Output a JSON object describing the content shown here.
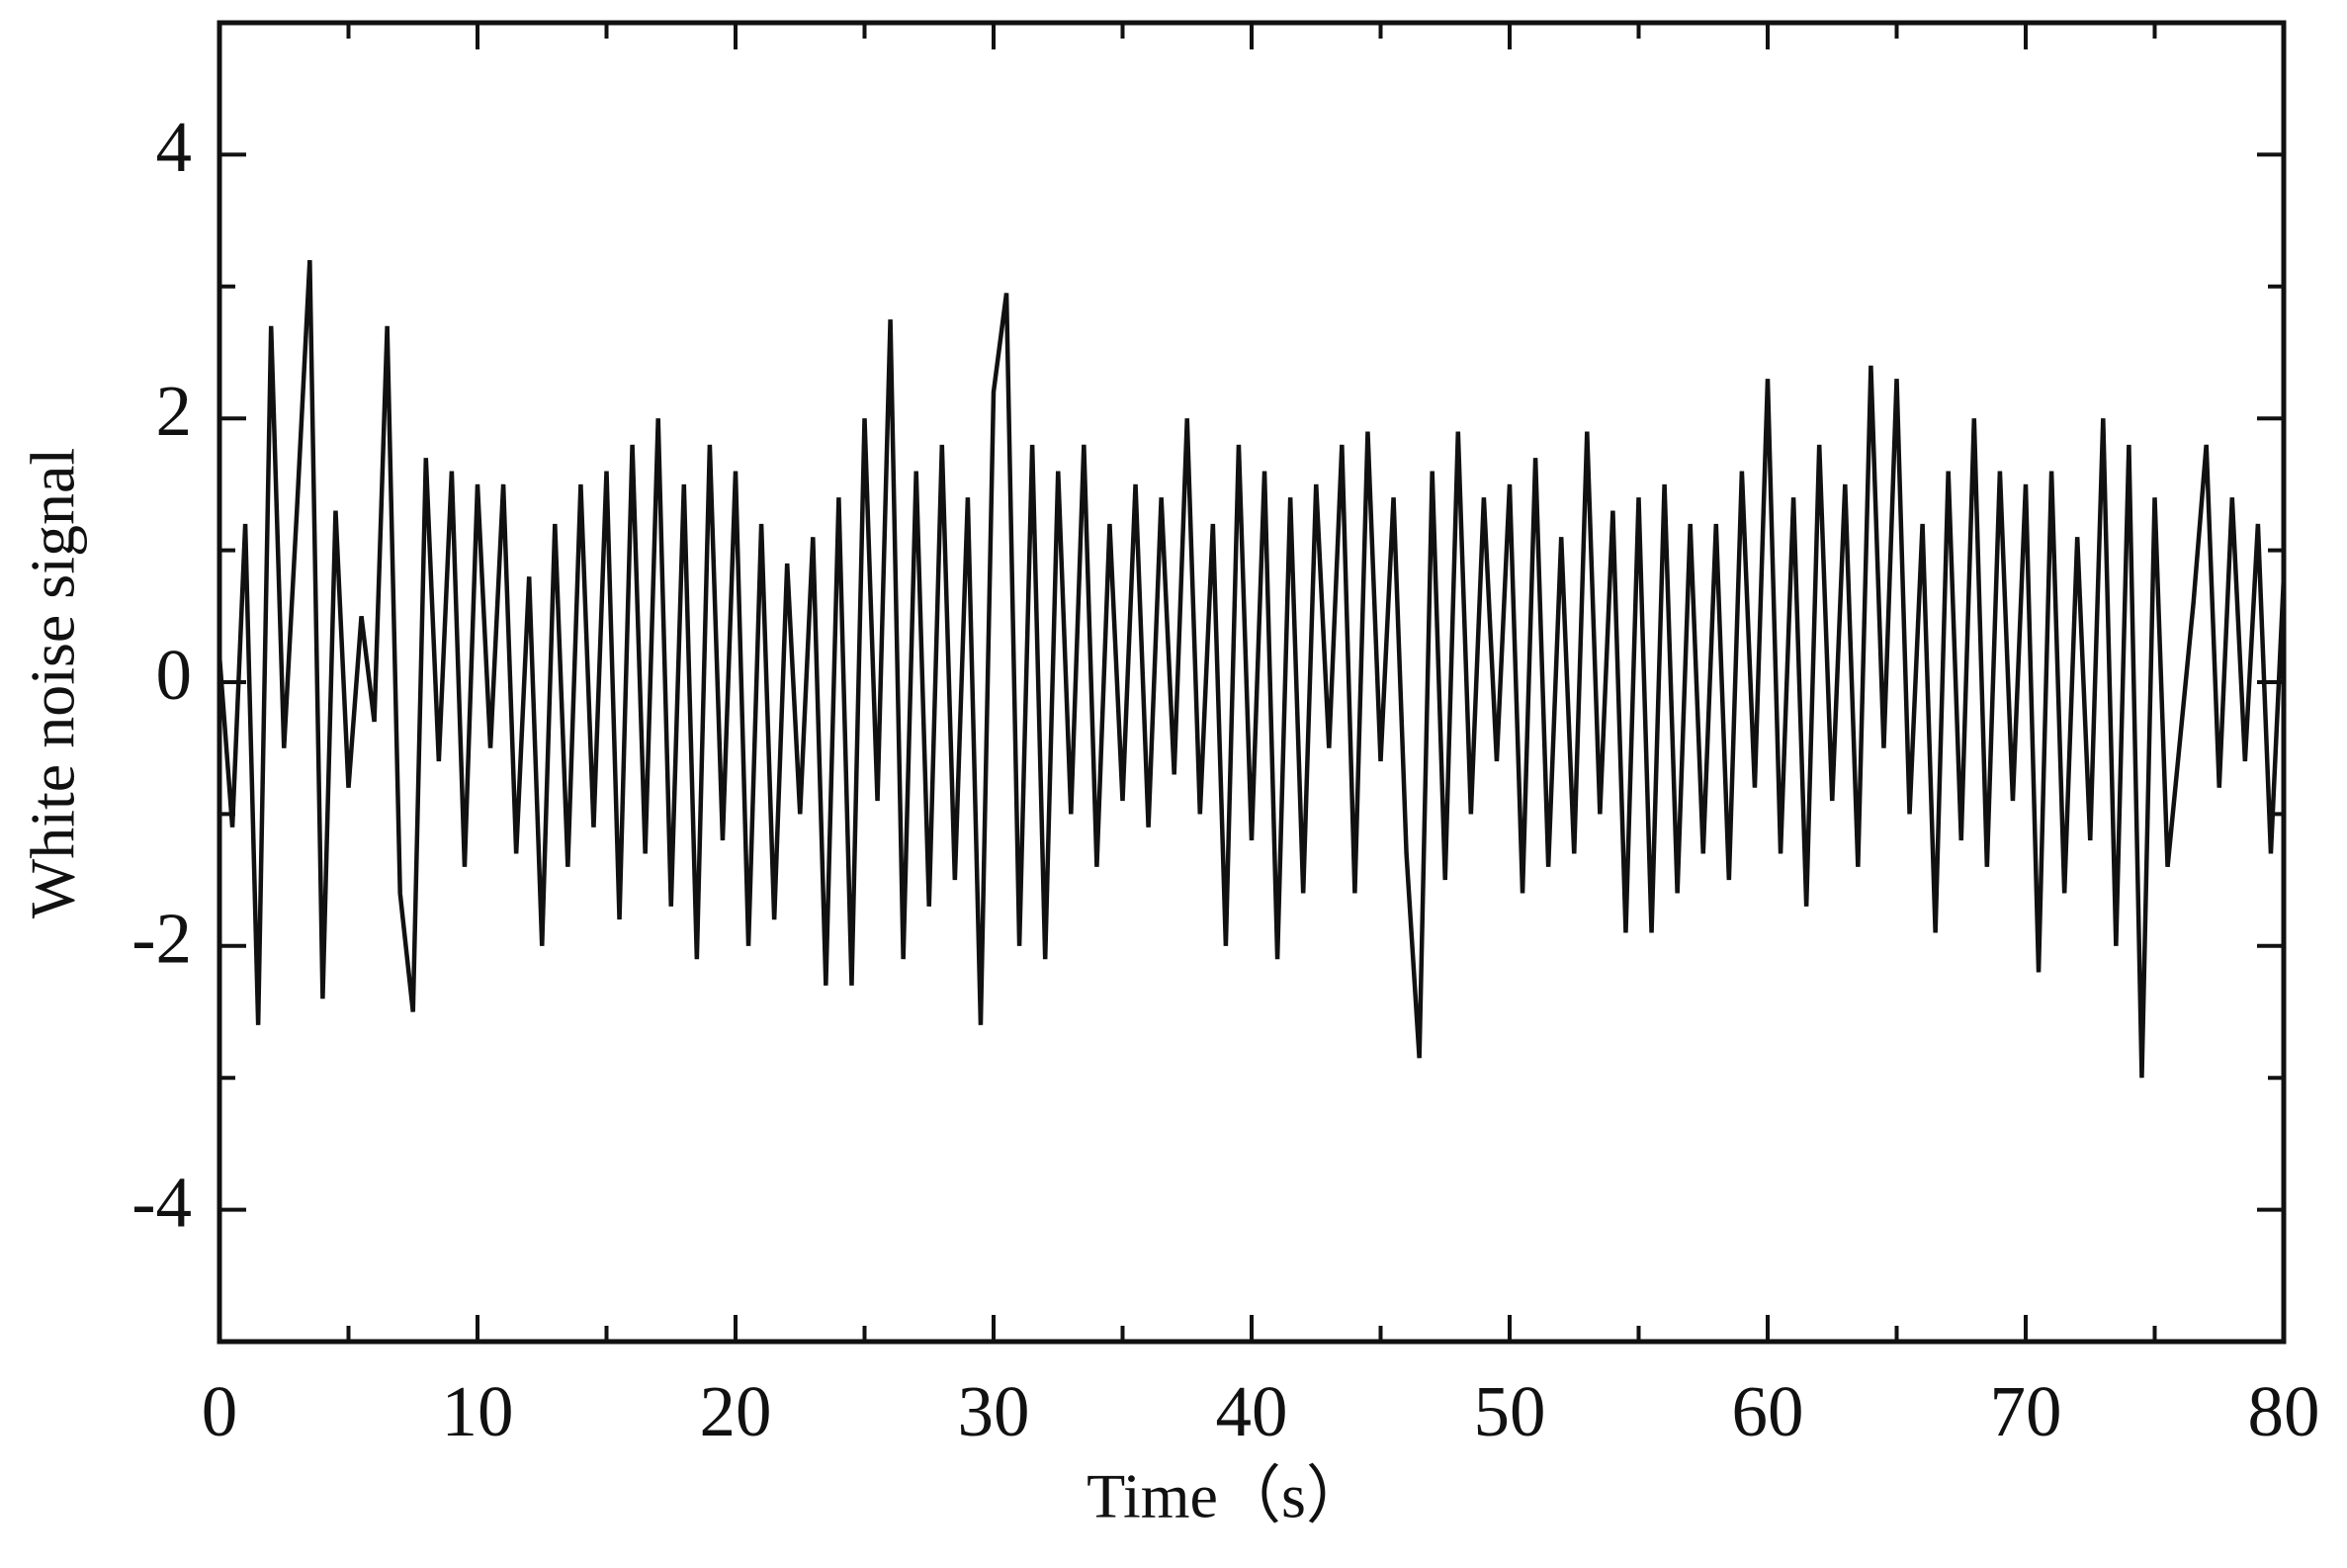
{
  "chart_data": {
    "type": "line",
    "xlabel": "Time（s）",
    "ylabel": "White noise signal",
    "color": "#111111",
    "xlim": [
      0,
      80
    ],
    "xticks": [
      0,
      10,
      20,
      30,
      40,
      50,
      60,
      70,
      80
    ],
    "xminorticks": [
      5,
      15,
      25,
      35,
      45,
      55,
      65,
      75
    ],
    "ylim": [
      -5,
      5
    ],
    "yticks": [
      -4,
      -2,
      0,
      2,
      4
    ],
    "yminorticks": [
      -5,
      -3,
      -1,
      1,
      3,
      5
    ],
    "x": [
      0,
      0.5,
      1,
      1.5,
      2,
      2.5,
      3,
      3.5,
      4,
      4.5,
      5,
      5.5,
      6,
      6.5,
      7,
      7.5,
      8,
      8.5,
      9,
      9.5,
      10,
      10.5,
      11,
      11.5,
      12,
      12.5,
      13,
      13.5,
      14,
      14.5,
      15,
      15.5,
      16,
      16.5,
      17,
      17.5,
      18,
      18.5,
      19,
      19.5,
      20,
      20.5,
      21,
      21.5,
      22,
      22.5,
      23,
      23.5,
      24,
      24.5,
      25,
      25.5,
      26,
      26.5,
      27,
      27.5,
      28,
      28.5,
      29,
      29.5,
      30,
      30.5,
      31,
      31.5,
      32,
      32.5,
      33,
      33.5,
      34,
      34.5,
      35,
      35.5,
      36,
      36.5,
      37,
      37.5,
      38,
      38.5,
      39,
      39.5,
      40,
      40.5,
      41,
      41.5,
      42,
      42.5,
      43,
      43.5,
      44,
      44.5,
      45,
      45.5,
      46,
      46.5,
      47,
      47.5,
      48,
      48.5,
      49,
      49.5,
      50,
      50.5,
      51,
      51.5,
      52,
      52.5,
      53,
      53.5,
      54,
      54.5,
      55,
      55.5,
      56,
      56.5,
      57,
      57.5,
      58,
      58.5,
      59,
      59.5,
      60,
      60.5,
      61,
      61.5,
      62,
      62.5,
      63,
      63.5,
      64,
      64.5,
      65,
      65.5,
      66,
      66.5,
      67,
      67.5,
      68,
      68.5,
      69,
      69.5,
      70,
      70.5,
      71,
      71.5,
      72,
      72.5,
      73,
      73.5,
      74,
      74.5,
      75,
      75.5,
      76,
      76.5,
      77,
      77.5,
      78,
      78.5,
      79,
      79.5,
      80
    ],
    "values": [
      0.2,
      -1.1,
      1.2,
      -2.6,
      2.7,
      -0.5,
      1.3,
      3.2,
      -2.4,
      1.3,
      -0.8,
      0.5,
      -0.3,
      2.7,
      -1.6,
      -2.5,
      1.7,
      -0.6,
      1.6,
      -1.4,
      1.5,
      -0.5,
      1.5,
      -1.3,
      0.8,
      -2.0,
      1.2,
      -1.4,
      1.5,
      -1.1,
      1.6,
      -1.8,
      1.8,
      -1.3,
      2.0,
      -1.7,
      1.5,
      -2.1,
      1.8,
      -1.2,
      1.6,
      -2.0,
      1.2,
      -1.8,
      0.9,
      -1.0,
      1.1,
      -2.3,
      1.4,
      -2.3,
      2.0,
      -0.9,
      2.75,
      -2.1,
      1.6,
      -1.7,
      1.8,
      -1.5,
      1.4,
      -2.6,
      2.2,
      2.95,
      -2.0,
      1.8,
      -2.1,
      1.6,
      -1.0,
      1.8,
      -1.4,
      1.2,
      -0.9,
      1.5,
      -1.1,
      1.4,
      -0.7,
      2.0,
      -1.0,
      1.2,
      -2.0,
      1.8,
      -1.2,
      1.6,
      -2.1,
      1.4,
      -1.6,
      1.5,
      -0.5,
      1.8,
      -1.6,
      1.9,
      -0.6,
      1.4,
      -1.3,
      -2.85,
      1.6,
      -1.5,
      1.9,
      -1.0,
      1.4,
      -0.6,
      1.5,
      -1.6,
      1.7,
      -1.4,
      1.1,
      -1.3,
      1.9,
      -1.0,
      1.3,
      -1.9,
      1.4,
      -1.9,
      1.5,
      -1.6,
      1.2,
      -1.3,
      1.2,
      -1.5,
      1.6,
      -0.8,
      2.3,
      -1.3,
      1.4,
      -1.7,
      1.8,
      -0.9,
      1.5,
      -1.4,
      2.4,
      -0.5,
      2.3,
      -1.0,
      1.2,
      -1.9,
      1.6,
      -1.2,
      2.0,
      -1.4,
      1.6,
      -0.9,
      1.5,
      -2.2,
      1.6,
      -1.6,
      1.1,
      -1.2,
      2.0,
      -2.0,
      1.8,
      -3.0,
      1.4,
      -1.4,
      -0.4,
      0.6,
      1.8,
      -0.8,
      1.4,
      -0.6,
      1.2,
      -1.3,
      0.8
    ]
  }
}
